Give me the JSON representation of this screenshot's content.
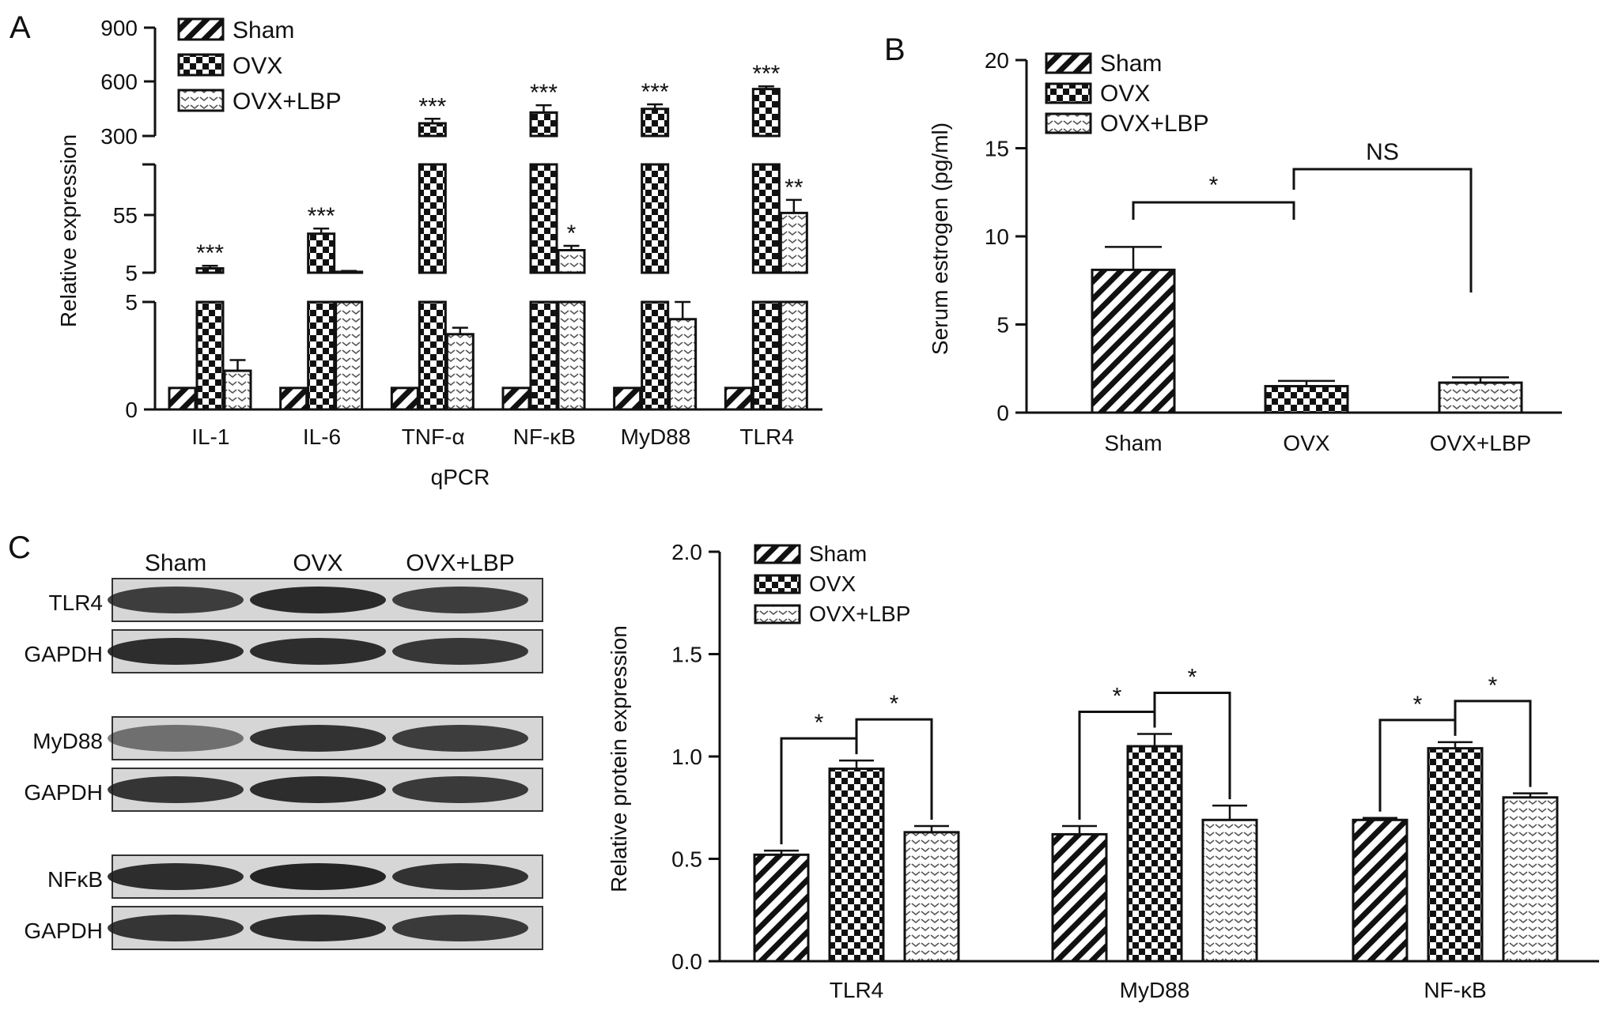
{
  "colors": {
    "ink": "#111111",
    "blot_band": "#1b1b1b",
    "blot_bg": "#d6d6d6"
  },
  "panel_a": {
    "letter": "A",
    "legend": [
      "Sham",
      "OVX",
      "OVX+LBP"
    ],
    "ylabel": "Relative expression",
    "xlabel": "qPCR",
    "yticks_top": [
      "900",
      "600",
      "300"
    ],
    "yticks_mid": [
      "55",
      "5"
    ],
    "yticks_low": [
      "5",
      "0"
    ]
  },
  "panel_b": {
    "letter": "B",
    "legend": [
      "Sham",
      "OVX",
      "OVX+LBP"
    ],
    "ylabel": "Serum estrogen (pg/ml)",
    "yticks": [
      "20",
      "15",
      "10",
      "5",
      "0"
    ],
    "bracket_labels": [
      "*",
      "NS"
    ]
  },
  "panel_c": {
    "letter": "C",
    "blot_header": [
      "Sham",
      "OVX",
      "OVX+LBP"
    ],
    "blot_rows": [
      "TLR4",
      "GAPDH",
      "MyD88",
      "GAPDH",
      "NFκB",
      "GAPDH"
    ],
    "legend": [
      "Sham",
      "OVX",
      "OVX+LBP"
    ],
    "ylabel": "Relative protein expression",
    "yticks": [
      "2.0",
      "1.5",
      "1.0",
      "0.5",
      "0.0"
    ]
  },
  "chart_data": [
    {
      "type": "bar",
      "panel": "A",
      "xlabel": "qPCR",
      "ylabel": "Relative expression",
      "axis_breaks": "three segments: 0–5, 5–130, 300–900",
      "categories": [
        "IL-1",
        "IL-6",
        "TNF-α",
        "NF-κB",
        "MyD88",
        "TLR4"
      ],
      "series": [
        {
          "name": "Sham",
          "values": [
            1,
            1,
            1,
            1,
            1,
            1
          ],
          "errors": [
            0,
            0,
            0,
            0,
            0,
            0
          ]
        },
        {
          "name": "OVX",
          "values": [
            10,
            50,
            370,
            430,
            450,
            560
          ],
          "errors": [
            3,
            6,
            25,
            40,
            25,
            15
          ]
        },
        {
          "name": "OVX+LBP",
          "values": [
            1.8,
            6,
            3.5,
            31,
            4.2,
            74
          ],
          "errors": [
            0.5,
            1,
            0.3,
            5,
            0.8,
            15
          ]
        }
      ],
      "significance": [
        "***",
        "***",
        "***",
        "***",
        "***",
        "***",
        "*",
        "**"
      ]
    },
    {
      "type": "bar",
      "panel": "B",
      "ylabel": "Serum estrogen (pg/ml)",
      "ylim": [
        0,
        20
      ],
      "categories": [
        "Sham",
        "OVX",
        "OVX+LBP"
      ],
      "values": [
        8.1,
        1.5,
        1.7
      ],
      "errors": [
        1.3,
        0.3,
        0.3
      ],
      "brackets": [
        {
          "from": "Sham",
          "to": "OVX",
          "label": "*"
        },
        {
          "from": "OVX",
          "to": "OVX+LBP",
          "label": "NS"
        }
      ]
    },
    {
      "type": "bar",
      "panel": "C",
      "ylabel": "Relative protein expression",
      "ylim": [
        0,
        2
      ],
      "categories": [
        "TLR4",
        "MyD88",
        "NF-κB"
      ],
      "series": [
        {
          "name": "Sham",
          "values": [
            0.52,
            0.62,
            0.69
          ],
          "errors": [
            0.02,
            0.04,
            0.01
          ]
        },
        {
          "name": "OVX",
          "values": [
            0.94,
            1.05,
            1.04
          ],
          "errors": [
            0.04,
            0.06,
            0.03
          ]
        },
        {
          "name": "OVX+LBP",
          "values": [
            0.63,
            0.69,
            0.8
          ],
          "errors": [
            0.03,
            0.07,
            0.02
          ]
        }
      ],
      "brackets": [
        {
          "category": "TLR4",
          "from": "Sham",
          "to": "OVX",
          "label": "*"
        },
        {
          "category": "TLR4",
          "from": "OVX",
          "to": "OVX+LBP",
          "label": "*"
        },
        {
          "category": "MyD88",
          "from": "Sham",
          "to": "OVX",
          "label": "*"
        },
        {
          "category": "MyD88",
          "from": "OVX",
          "to": "OVX+LBP",
          "label": "*"
        },
        {
          "category": "NF-κB",
          "from": "Sham",
          "to": "OVX",
          "label": "*"
        },
        {
          "category": "NF-κB",
          "from": "OVX",
          "to": "OVX+LBP",
          "label": "*"
        }
      ]
    }
  ]
}
